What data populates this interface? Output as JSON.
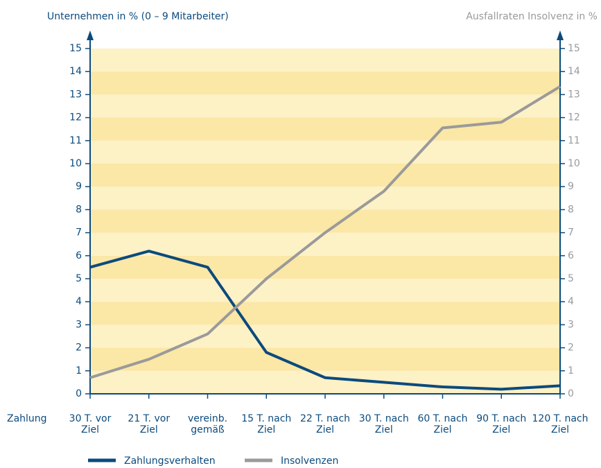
{
  "chart_data": {
    "type": "line",
    "y_axis_label": "Unternehmen in % (0 – 9 Mitarbeiter)",
    "y2_axis_label": "Ausfallraten Insolvenz in %",
    "x_axis_label": "Zahlung",
    "categories": [
      [
        "30 T. vor",
        "Ziel"
      ],
      [
        "21 T. vor",
        "Ziel"
      ],
      [
        "vereinb.",
        "gemäß"
      ],
      [
        "15 T. nach",
        "Ziel"
      ],
      [
        "22 T. nach",
        "Ziel"
      ],
      [
        "30 T. nach",
        "Ziel"
      ],
      [
        "60 T. nach",
        "Ziel"
      ],
      [
        "90 T. nach",
        "Ziel"
      ],
      [
        "120 T. nach",
        "Ziel"
      ]
    ],
    "series": [
      {
        "name": "Zahlungsverhalten",
        "color": "#0b4a7d",
        "values": [
          5.5,
          6.2,
          5.5,
          1.8,
          0.7,
          0.5,
          0.3,
          0.2,
          0.35
        ]
      },
      {
        "name": "Insolvenzen",
        "color": "#9a9a9a",
        "axis": "y2",
        "values": [
          0.7,
          1.5,
          2.6,
          5.0,
          7.0,
          8.8,
          11.55,
          11.8,
          13.35
        ]
      }
    ],
    "ylim": [
      0,
      15
    ],
    "yticks": [
      0,
      1,
      2,
      3,
      4,
      5,
      6,
      7,
      8,
      9,
      10,
      11,
      12,
      13,
      14,
      15
    ],
    "y2lim": [
      0,
      15
    ],
    "y2ticks": [
      0,
      1,
      2,
      3,
      4,
      5,
      6,
      7,
      8,
      9,
      10,
      11,
      12,
      13,
      14,
      15
    ],
    "band_colors": [
      "#fdf1c6",
      "#fbe7a6"
    ],
    "legend": "bottom"
  }
}
